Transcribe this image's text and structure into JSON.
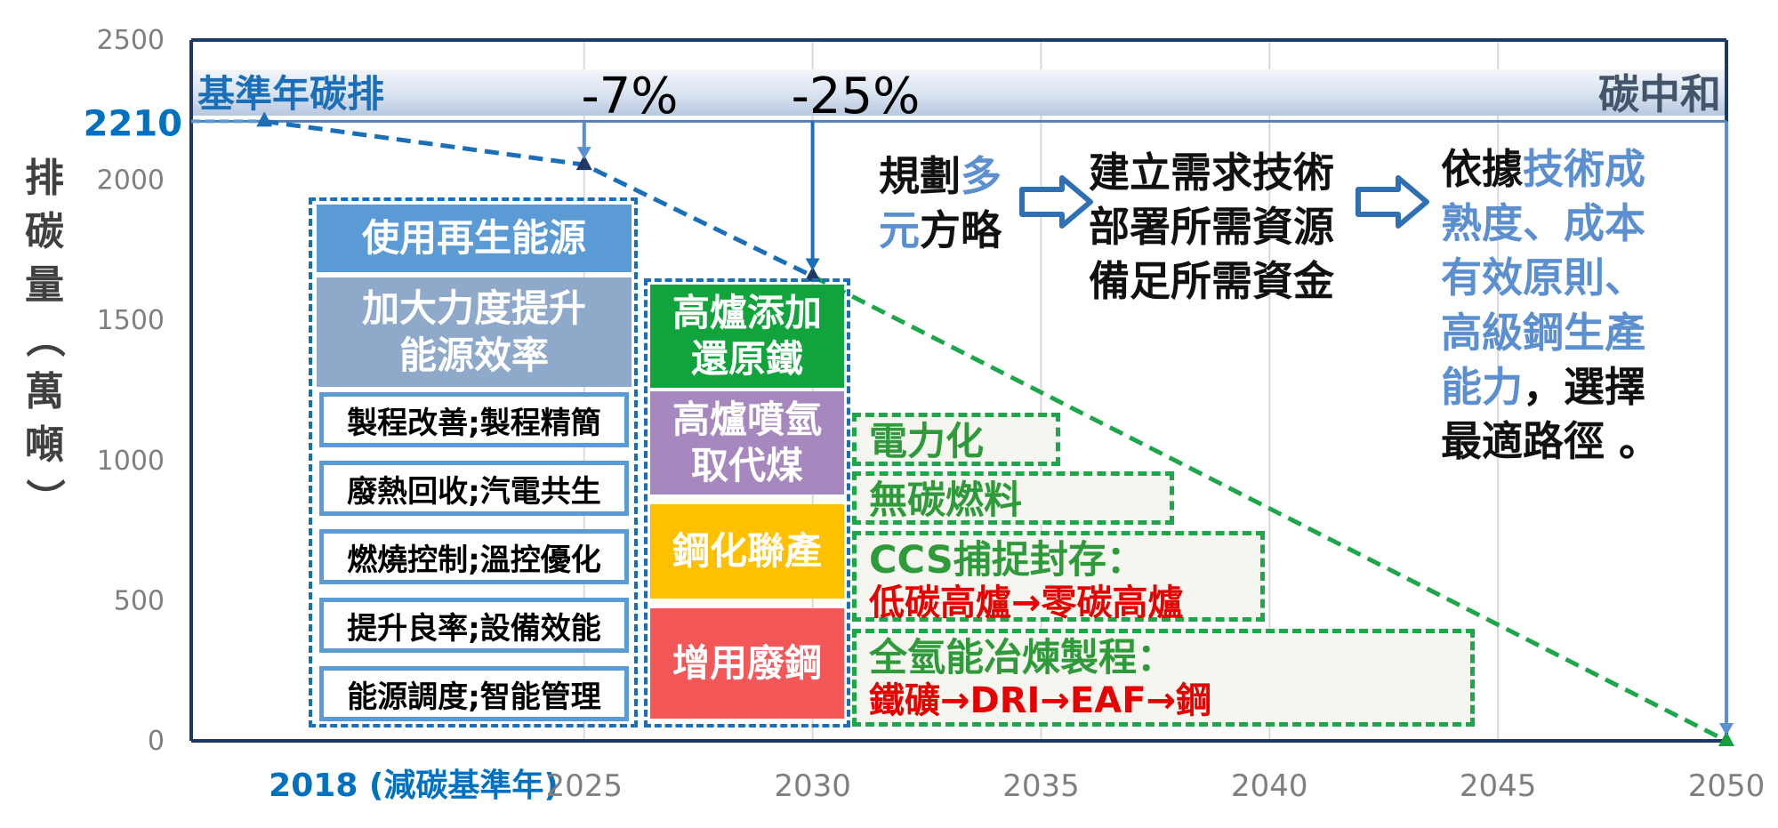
{
  "chart_data": {
    "type": "line",
    "y_axis_title": "排碳量（萬噸）",
    "x_ticks": [
      {
        "label": "2018 (減碳基準年)",
        "year": 2018,
        "highlight": true
      },
      {
        "label": "2025",
        "year": 2025
      },
      {
        "label": "2030",
        "year": 2030
      },
      {
        "label": "2035",
        "year": 2035
      },
      {
        "label": "2040",
        "year": 2040
      },
      {
        "label": "2045",
        "year": 2045
      },
      {
        "label": "2050",
        "year": 2050
      }
    ],
    "y_ticks": [
      "0",
      "500",
      "1000",
      "1500",
      "2000",
      "2500"
    ],
    "ylim": [
      0,
      2500
    ],
    "xlim": [
      2016.4,
      2050
    ],
    "grid": true,
    "baseline_value_label": "2210",
    "series": [
      {
        "style": "blue-dashed",
        "points": [
          [
            2018,
            2210
          ],
          [
            2025,
            2055.3
          ],
          [
            2030,
            1657.5
          ]
        ]
      },
      {
        "style": "green-dashed",
        "points": [
          [
            2030,
            1657.5
          ],
          [
            2050,
            0
          ]
        ]
      }
    ],
    "annotations": {
      "baseline_label": "基準年碳排",
      "pct_2025": "-7%",
      "pct_2030": "-25%",
      "neutral_label": "碳中和"
    }
  },
  "colors": {
    "axis": "#1f3864",
    "blue_series": "#1a6fb8",
    "green_series": "#1ea74a",
    "tick_text": "#7f7f7f",
    "accent_blue": "#0070c0",
    "renewable_box": "#5b9bd5",
    "efficiency_box": "#8ea9c9",
    "hydrogen_box": "#12a43c",
    "coal_box": "#a688bf",
    "joint_box": "#ffc000",
    "scrap_box": "#f45757"
  },
  "boxes": {
    "renewable": "使用再生能源",
    "efficiency": "加大力度提升能源效率",
    "measures": [
      "製程改善;製程精簡",
      "廢熱回收;汽電共生",
      "燃燒控制;溫控優化",
      "提升良率;設備效能",
      "能源調度;智能管理"
    ],
    "hydrogen_iron": "高爐添加還原鐵",
    "hydrogen_coal": "高爐噴氫取代煤",
    "joint_production": "鋼化聯產",
    "scrap_steel": "增用廢鋼"
  },
  "green_bars": {
    "electrification": "電力化",
    "carbon_free_fuel": "無碳燃料",
    "ccs_title": "CCS捕捉封存：",
    "ccs_sub": "低碳高爐→零碳高爐",
    "hydrogen_title": "全氫能冶煉製程：",
    "hydrogen_sub": "鐵礦→DRI→EAF→鋼"
  },
  "strategy": {
    "step1_a": "規劃",
    "step1_b": "多",
    "step1_c": "元",
    "step1_d": "方略",
    "step2": "建立需求技術部署所需資源備足所需資金",
    "step3_a": "依據",
    "step3_b": "技術成熟度、成本有效原則、高級鋼生產能力",
    "step3_c": "，選擇最適路徑 。"
  }
}
